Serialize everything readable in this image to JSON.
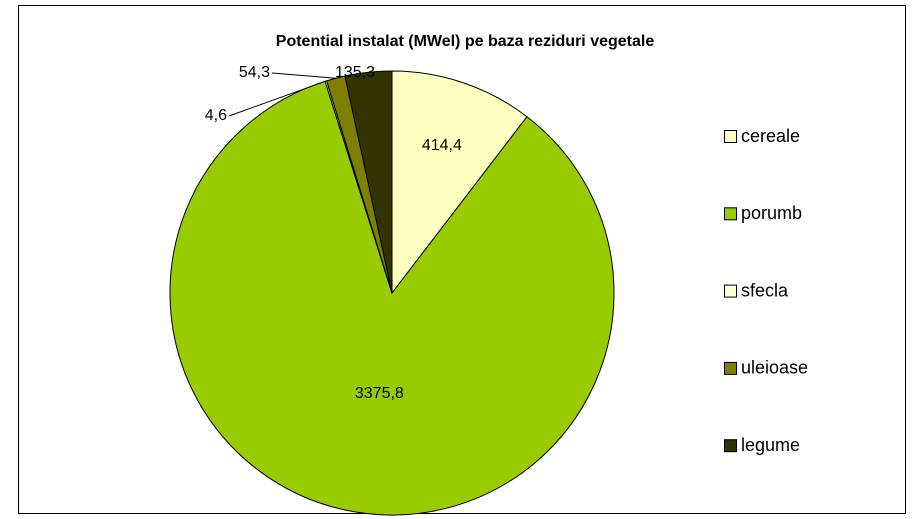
{
  "chart_data": {
    "type": "pie",
    "title": "Potential instalat (MWel) pe baza reziduri vegetale",
    "categories": [
      "cereale",
      "porumb",
      "sfecla",
      "uleioase",
      "legume"
    ],
    "values": [
      414.4,
      3375.8,
      4.6,
      54.3,
      135.3
    ],
    "value_labels": [
      "414,4",
      "3375,8",
      "4,6",
      "54,3",
      "135,3"
    ],
    "colors": [
      "#ffffc0",
      "#99cc00",
      "#ffffcc",
      "#808000",
      "#333300"
    ],
    "legend": "right"
  }
}
